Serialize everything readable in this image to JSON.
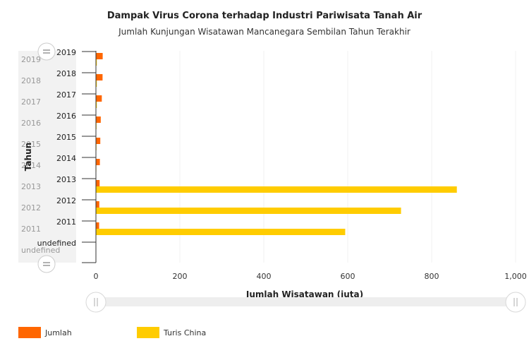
{
  "chart_data": {
    "type": "bar",
    "orientation": "horizontal",
    "title": "Dampak Virus Corona terhadap Industri Pariwisata Tanah Air",
    "subtitle": "Jumlah Kunjungan Wisatawan Mancanegara  Sembilan Tahun Terakhir",
    "xlabel": "Jumlah Wisatawan (juta)",
    "ylabel": "Tahun",
    "xlim": [
      0,
      1000
    ],
    "xticks": [
      "0",
      "200",
      "400",
      "600",
      "800",
      "1,000"
    ],
    "xtick_values": [
      0,
      200,
      400,
      600,
      800,
      1000
    ],
    "categories": [
      "2019",
      "2018",
      "2017",
      "2016",
      "2015",
      "2014",
      "2013",
      "2012",
      "2011",
      "undefined"
    ],
    "navigator_labels": [
      "2019",
      "2018",
      "2017",
      "2016",
      "2015",
      "2014",
      "2013",
      "2012",
      "2011",
      "undefined"
    ],
    "series": [
      {
        "name": "Jumlah",
        "color": "#ff6600",
        "values": [
          16.1,
          15.8,
          14.0,
          11.5,
          10.4,
          9.4,
          8.8,
          8.0,
          7.6,
          null
        ]
      },
      {
        "name": "Turis China",
        "color": "#ffcc00",
        "values": [
          2.1,
          2.1,
          2.1,
          1.4,
          1.3,
          1.0,
          860,
          727,
          594,
          null
        ]
      }
    ],
    "grid": true,
    "legend": "bottom-left"
  }
}
